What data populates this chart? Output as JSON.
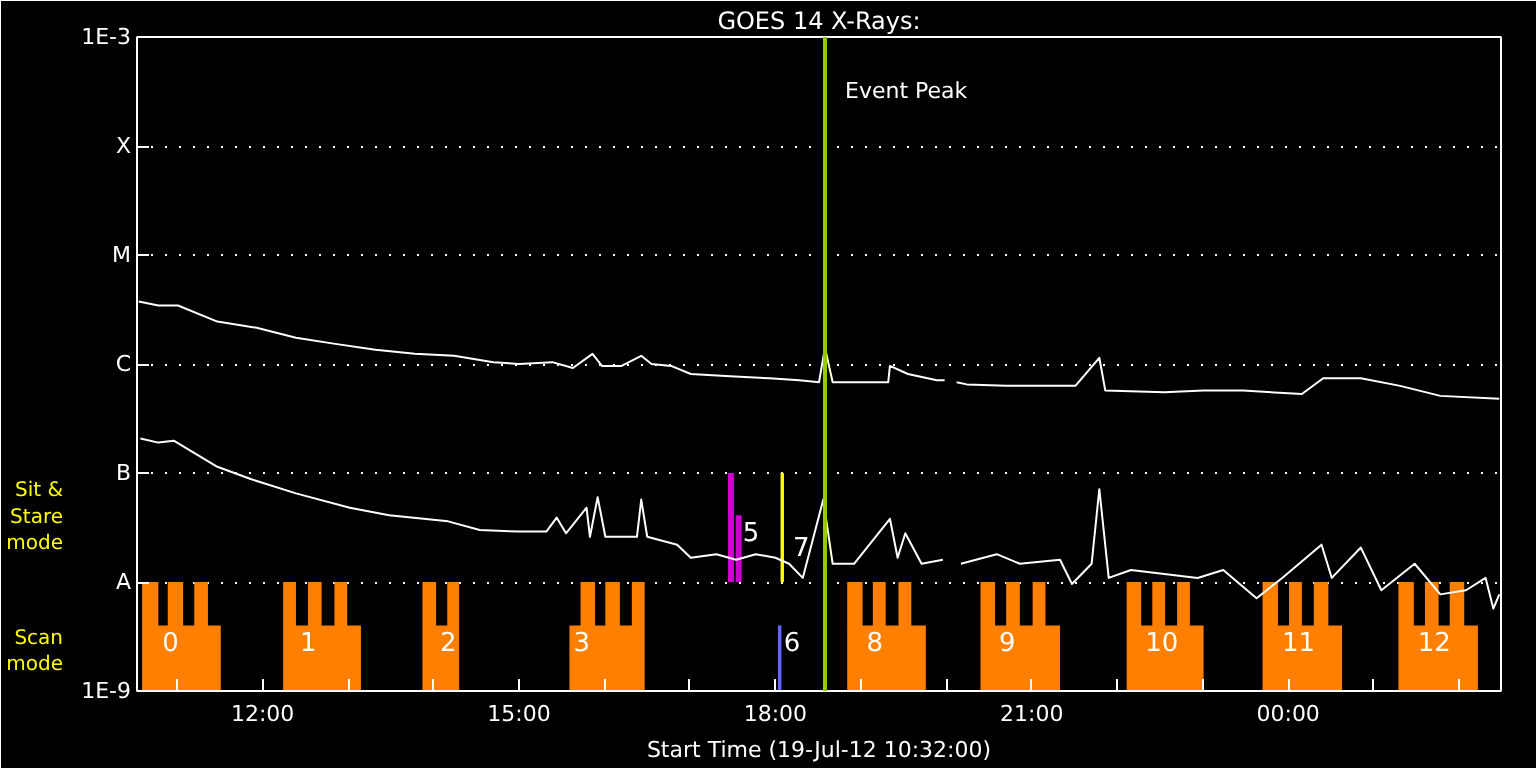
{
  "chart_data": {
    "type": "line",
    "title": "GOES 14 X-Rays:",
    "xlabel": "Start Time (19-Jul-12 10:32:00)",
    "xlim": [
      10.53,
      26.49
    ],
    "xticks": [
      {
        "value": 11,
        "label": null
      },
      {
        "value": 12,
        "label": "12:00"
      },
      {
        "value": 13,
        "label": null
      },
      {
        "value": 14,
        "label": null
      },
      {
        "value": 15,
        "label": "15:00"
      },
      {
        "value": 16,
        "label": null
      },
      {
        "value": 17,
        "label": null
      },
      {
        "value": 18,
        "label": "18:00"
      },
      {
        "value": 19,
        "label": null
      },
      {
        "value": 20,
        "label": null
      },
      {
        "value": 21,
        "label": "21:00"
      },
      {
        "value": 22,
        "label": null
      },
      {
        "value": 23,
        "label": null
      },
      {
        "value": 24,
        "label": "00:00"
      },
      {
        "value": 25,
        "label": null
      },
      {
        "value": 26,
        "label": null
      }
    ],
    "ylim": [
      1e-09,
      0.001
    ],
    "yticks": [
      {
        "value": 1e-09,
        "label": "1E-9"
      },
      {
        "value": 1e-08,
        "label": "A"
      },
      {
        "value": 1e-07,
        "label": "B"
      },
      {
        "value": 1e-06,
        "label": "C"
      },
      {
        "value": 1e-05,
        "label": "M"
      },
      {
        "value": 0.0001,
        "label": "X"
      },
      {
        "value": 0.001,
        "label": "1E-3"
      }
    ],
    "log": "y",
    "grid": "y",
    "line_style": "solid",
    "series": [
      {
        "type": "area",
        "color": "#ff8000",
        "x": [
          10.59,
          10.78,
          10.78,
          10.89,
          10.89,
          11.07,
          11.07,
          11.2,
          11.2,
          11.36,
          11.36,
          11.51,
          11.8,
          12.24,
          12.39,
          12.39,
          12.53,
          12.53,
          12.69,
          12.69,
          12.84,
          12.84,
          12.99,
          12.99,
          13.15,
          13.5,
          13.87,
          14.03,
          14.03,
          14.16,
          14.16,
          14.3,
          14.9,
          15.59,
          15.72,
          15.72,
          15.89,
          15.89,
          16.01,
          16.01,
          16.18,
          16.18,
          16.32,
          16.32,
          16.47,
          17.5,
          18.84,
          19.02,
          19.02,
          19.14,
          19.14,
          19.29,
          19.29,
          19.44,
          19.44,
          19.59,
          19.59,
          19.76,
          20.0,
          20.4,
          20.57,
          20.57,
          20.7,
          20.7,
          20.86,
          20.86,
          21.01,
          21.01,
          21.16,
          21.16,
          21.33,
          21.7,
          22.11,
          22.28,
          22.28,
          22.41,
          22.41,
          22.56,
          22.56,
          22.7,
          22.7,
          22.85,
          22.85,
          23.01,
          23.3,
          23.7,
          23.88,
          23.88,
          24.01,
          24.01,
          24.16,
          24.16,
          24.3,
          24.3,
          24.47,
          24.47,
          24.63,
          24.9,
          25.29,
          25.47,
          25.47,
          25.6,
          25.6,
          25.76,
          25.76,
          25.89,
          25.89,
          26.06,
          26.06,
          26.22
        ],
        "values": [
          1e-08,
          1e-08,
          4e-09,
          4e-09,
          1e-08,
          1e-08,
          4e-09,
          4e-09,
          1e-08,
          1e-08,
          4e-09,
          4e-09,
          null,
          1e-08,
          1e-08,
          4e-09,
          4e-09,
          1e-08,
          1e-08,
          4e-09,
          4e-09,
          1e-08,
          1e-08,
          4e-09,
          4e-09,
          null,
          1e-08,
          1e-08,
          4e-09,
          4e-09,
          1e-08,
          1e-08,
          null,
          4e-09,
          4e-09,
          1e-08,
          1e-08,
          4e-09,
          4e-09,
          1e-08,
          1e-08,
          4e-09,
          4e-09,
          1e-08,
          1e-08,
          null,
          1e-08,
          1e-08,
          4e-09,
          4e-09,
          1e-08,
          1e-08,
          4e-09,
          4e-09,
          1e-08,
          1e-08,
          4e-09,
          4e-09,
          null,
          1e-08,
          1e-08,
          4e-09,
          4e-09,
          1e-08,
          1e-08,
          4e-09,
          4e-09,
          1e-08,
          1e-08,
          4e-09,
          4e-09,
          null,
          1e-08,
          1e-08,
          4e-09,
          4e-09,
          1e-08,
          1e-08,
          4e-09,
          4e-09,
          1e-08,
          1e-08,
          4e-09,
          4e-09,
          null,
          1e-08,
          1e-08,
          4e-09,
          4e-09,
          1e-08,
          1e-08,
          4e-09,
          4e-09,
          1e-08,
          1e-08,
          4e-09,
          4e-09,
          null,
          1e-08,
          1e-08,
          4e-09,
          4e-09,
          1e-08,
          1e-08,
          4e-09,
          4e-09,
          1e-08,
          1e-08,
          4e-09,
          4e-09
        ]
      },
      {
        "type": "bar",
        "color": "#cc00cc",
        "x": [
          17.48,
          17.57
        ],
        "base": [
          1e-08,
          1e-08
        ],
        "values": [
          9e-08,
          3.1e-08
        ]
      },
      {
        "type": "bar",
        "color": "#ffff00",
        "x": [
          18.08
        ],
        "base": [
          1e-08
        ],
        "values": [
          9e-08
        ]
      },
      {
        "type": "bar",
        "color": "#6464ff",
        "x": [
          18.05
        ],
        "base": [
          1e-09
        ],
        "values": [
          3e-09
        ]
      },
      {
        "color": "#ffffff",
        "x": [
          10.55,
          10.78,
          11.01,
          11.47,
          11.93,
          12.39,
          12.85,
          13.32,
          13.78,
          14.24,
          14.7,
          15.0,
          15.39,
          15.63,
          15.86,
          15.97,
          16.2,
          16.43,
          16.55,
          16.78,
          17.01,
          17.47,
          17.93,
          18.28,
          18.51,
          18.58,
          18.67,
          18.86,
          19.32,
          19.34,
          19.55,
          19.89,
          19.98,
          20.05,
          20.12,
          20.24,
          20.7,
          21.51,
          21.79,
          21.86,
          22.55,
          23.01,
          23.47,
          24.16,
          24.41,
          24.85,
          25.31,
          25.78,
          26.47
        ],
        "values": [
          3.75e-06,
          3.44e-06,
          3.44e-06,
          2.45e-06,
          2.15e-06,
          1.74e-06,
          1.53e-06,
          1.35e-06,
          1.24e-06,
          1.19e-06,
          1.04e-06,
          1e-06,
          1.04e-06,
          9.2e-07,
          1.24e-06,
          9.6e-07,
          9.6e-07,
          1.19e-06,
          1e-06,
          9.6e-07,
          8.1e-07,
          7.7e-07,
          7.4e-07,
          7.1e-07,
          6.8e-07,
          1.41e-06,
          6.8e-07,
          6.8e-07,
          6.8e-07,
          9.6e-07,
          8.1e-07,
          7.1e-07,
          7.1e-07,
          null,
          6.8e-07,
          6.5e-07,
          6.3e-07,
          6.3e-07,
          1.14e-06,
          5.7e-07,
          5.5e-07,
          5.7e-07,
          5.7e-07,
          5.3e-07,
          7.4e-07,
          7.4e-07,
          6.3e-07,
          5.1e-07,
          4.8e-07
        ]
      },
      {
        "color": "#ffffff",
        "x": [
          10.57,
          10.78,
          10.96,
          11.47,
          11.86,
          12.39,
          13.02,
          13.48,
          14.17,
          14.54,
          15.0,
          15.32,
          15.44,
          15.55,
          15.79,
          15.83,
          15.92,
          16.01,
          16.38,
          16.43,
          16.5,
          16.85,
          17.01,
          17.31,
          17.54,
          17.77,
          18.0,
          18.16,
          18.32,
          18.56,
          18.67,
          18.92,
          19.34,
          19.43,
          19.52,
          19.71,
          19.96,
          20.05,
          20.17,
          20.59,
          20.86,
          21.33,
          21.47,
          21.7,
          21.79,
          21.9,
          22.16,
          22.94,
          23.24,
          23.63,
          23.93,
          24.39,
          24.51,
          24.85,
          25.09,
          25.48,
          25.78,
          26.08,
          26.31,
          26.4,
          26.47
        ],
        "values": [
          2.07e-07,
          1.9e-07,
          1.98e-07,
          1.14e-07,
          8.8e-08,
          6.5e-08,
          4.8e-08,
          4.1e-08,
          3.6e-08,
          3e-08,
          2.9e-08,
          2.9e-08,
          3.9e-08,
          2.8e-08,
          4.8e-08,
          2.6e-08,
          6e-08,
          2.6e-08,
          2.6e-08,
          5.7e-08,
          2.6e-08,
          2.2e-08,
          1.67e-08,
          1.8e-08,
          1.6e-08,
          1.8e-08,
          1.67e-08,
          1.47e-08,
          1.09e-08,
          5.7e-08,
          1.47e-08,
          1.47e-08,
          3.8e-08,
          1.67e-08,
          2.8e-08,
          1.47e-08,
          1.6e-08,
          null,
          1.47e-08,
          1.8e-08,
          1.47e-08,
          1.6e-08,
          9.6e-09,
          1.47e-08,
          7.1e-08,
          1.09e-08,
          1.29e-08,
          1.09e-08,
          1.29e-08,
          7.1e-09,
          1.09e-08,
          2.2e-08,
          1.09e-08,
          2.07e-08,
          8.4e-09,
          1.47e-08,
          7.7e-09,
          8.4e-09,
          1.09e-08,
          5.7e-09,
          7.7e-09
        ]
      }
    ],
    "ref_lines": [
      {
        "axis": "x",
        "value": 18.58,
        "label": "Event Peak",
        "color": "#99cc00"
      }
    ],
    "annotations": [
      "Sit & Stare mode",
      "Scan mode",
      {
        "text": "0",
        "x": 10.78,
        "y": 4e-09
      },
      {
        "text": "1",
        "x": 12.39,
        "y": 4e-09
      },
      {
        "text": "2",
        "x": 14.03,
        "y": 4e-09
      },
      {
        "text": "3",
        "x": 15.59,
        "y": 4e-09
      },
      {
        "text": "6",
        "x": 18.05,
        "y": 4e-09
      },
      {
        "text": "8",
        "x": 19.02,
        "y": 4e-09
      },
      {
        "text": "9",
        "x": 20.57,
        "y": 4e-09
      },
      {
        "text": "10",
        "x": 22.28,
        "y": 4e-09
      },
      {
        "text": "11",
        "x": 23.88,
        "y": 4e-09
      },
      {
        "text": "12",
        "x": 25.47,
        "y": 4e-09
      },
      {
        "text": "5",
        "x": 17.57,
        "y": 4.1e-08
      },
      {
        "text": "7",
        "x": 18.16,
        "y": 1.47e-08
      }
    ]
  }
}
